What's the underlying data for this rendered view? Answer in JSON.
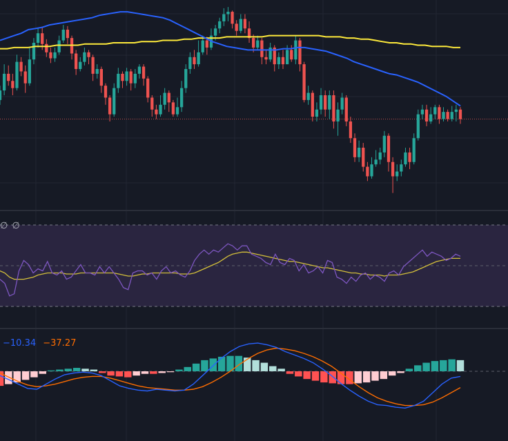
{
  "colors": {
    "background": "#161a25",
    "up_candle": "#26a69a",
    "down_candle": "#ef5350",
    "ma_fast": "#2962ff",
    "ma_slow": "#ffeb3b",
    "rsi_line": "#7e57c2",
    "rsi_ma": "#d4c03a",
    "rsi_band": "#2a2540",
    "macd_line": "#2962ff",
    "signal_line": "#ff6d00",
    "hist_up_strong": "#26a69a",
    "hist_up_weak": "#b2dfdb",
    "hist_down_strong": "#ff5252",
    "hist_down_weak": "#ffcdd2",
    "grid": "#222632",
    "price_line": "#c0504d"
  },
  "rsi_pane": {
    "label": "∅ ∅"
  },
  "macd_pane": {
    "macd_value": "−10.34",
    "signal_value": "−37.27",
    "macd_color": "#2962ff",
    "signal_color": "#ff6d00"
  },
  "chart_data": {
    "type": "candlestick",
    "panes": [
      "price",
      "rsi",
      "macd"
    ],
    "grid": true,
    "candles": [
      {
        "o": 74,
        "c": 82,
        "h": 86,
        "l": 70
      },
      {
        "o": 82,
        "c": 96,
        "h": 104,
        "l": 78
      },
      {
        "o": 96,
        "c": 90,
        "h": 103,
        "l": 86
      },
      {
        "o": 90,
        "c": 84,
        "h": 96,
        "l": 78
      },
      {
        "o": 84,
        "c": 106,
        "h": 112,
        "l": 82
      },
      {
        "o": 106,
        "c": 98,
        "h": 110,
        "l": 94
      },
      {
        "o": 98,
        "c": 88,
        "h": 103,
        "l": 80
      },
      {
        "o": 88,
        "c": 108,
        "h": 118,
        "l": 86
      },
      {
        "o": 108,
        "c": 122,
        "h": 126,
        "l": 104
      },
      {
        "o": 122,
        "c": 130,
        "h": 134,
        "l": 118
      },
      {
        "o": 130,
        "c": 121,
        "h": 135,
        "l": 116
      },
      {
        "o": 121,
        "c": 114,
        "h": 125,
        "l": 110
      },
      {
        "o": 114,
        "c": 109,
        "h": 118,
        "l": 105
      },
      {
        "o": 109,
        "c": 114,
        "h": 118,
        "l": 106
      },
      {
        "o": 114,
        "c": 124,
        "h": 128,
        "l": 112
      },
      {
        "o": 124,
        "c": 133,
        "h": 137,
        "l": 122
      },
      {
        "o": 133,
        "c": 126,
        "h": 136,
        "l": 121
      },
      {
        "o": 126,
        "c": 113,
        "h": 128,
        "l": 108
      },
      {
        "o": 113,
        "c": 100,
        "h": 116,
        "l": 95
      },
      {
        "o": 100,
        "c": 106,
        "h": 110,
        "l": 98
      },
      {
        "o": 106,
        "c": 114,
        "h": 118,
        "l": 103
      },
      {
        "o": 114,
        "c": 110,
        "h": 116,
        "l": 104
      },
      {
        "o": 110,
        "c": 96,
        "h": 112,
        "l": 90
      },
      {
        "o": 96,
        "c": 100,
        "h": 104,
        "l": 92
      },
      {
        "o": 100,
        "c": 86,
        "h": 102,
        "l": 80
      },
      {
        "o": 86,
        "c": 76,
        "h": 88,
        "l": 70
      },
      {
        "o": 76,
        "c": 62,
        "h": 78,
        "l": 56
      },
      {
        "o": 62,
        "c": 84,
        "h": 88,
        "l": 60
      },
      {
        "o": 84,
        "c": 96,
        "h": 101,
        "l": 80
      },
      {
        "o": 96,
        "c": 90,
        "h": 98,
        "l": 84
      },
      {
        "o": 90,
        "c": 98,
        "h": 101,
        "l": 86
      },
      {
        "o": 98,
        "c": 88,
        "h": 100,
        "l": 82
      },
      {
        "o": 88,
        "c": 96,
        "h": 100,
        "l": 84
      },
      {
        "o": 96,
        "c": 102,
        "h": 104,
        "l": 92
      },
      {
        "o": 102,
        "c": 92,
        "h": 104,
        "l": 86
      },
      {
        "o": 92,
        "c": 76,
        "h": 94,
        "l": 72
      },
      {
        "o": 76,
        "c": 66,
        "h": 78,
        "l": 60
      },
      {
        "o": 66,
        "c": 62,
        "h": 70,
        "l": 58
      },
      {
        "o": 62,
        "c": 70,
        "h": 78,
        "l": 60
      },
      {
        "o": 70,
        "c": 80,
        "h": 84,
        "l": 66
      },
      {
        "o": 80,
        "c": 72,
        "h": 82,
        "l": 64
      },
      {
        "o": 72,
        "c": 62,
        "h": 74,
        "l": 60
      },
      {
        "o": 62,
        "c": 68,
        "h": 76,
        "l": 60
      },
      {
        "o": 68,
        "c": 84,
        "h": 90,
        "l": 64
      },
      {
        "o": 84,
        "c": 100,
        "h": 104,
        "l": 80
      },
      {
        "o": 100,
        "c": 110,
        "h": 114,
        "l": 96
      },
      {
        "o": 110,
        "c": 104,
        "h": 116,
        "l": 100
      },
      {
        "o": 104,
        "c": 114,
        "h": 124,
        "l": 102
      },
      {
        "o": 114,
        "c": 124,
        "h": 128,
        "l": 112
      },
      {
        "o": 124,
        "c": 118,
        "h": 127,
        "l": 112
      },
      {
        "o": 118,
        "c": 128,
        "h": 134,
        "l": 116
      },
      {
        "o": 128,
        "c": 134,
        "h": 137,
        "l": 124
      },
      {
        "o": 134,
        "c": 140,
        "h": 143,
        "l": 130
      },
      {
        "o": 140,
        "c": 146,
        "h": 151,
        "l": 136
      },
      {
        "o": 146,
        "c": 148,
        "h": 152,
        "l": 140
      },
      {
        "o": 148,
        "c": 138,
        "h": 149,
        "l": 134
      },
      {
        "o": 138,
        "c": 132,
        "h": 141,
        "l": 128
      },
      {
        "o": 132,
        "c": 142,
        "h": 146,
        "l": 130
      },
      {
        "o": 142,
        "c": 134,
        "h": 146,
        "l": 130
      },
      {
        "o": 134,
        "c": 126,
        "h": 140,
        "l": 122
      },
      {
        "o": 126,
        "c": 118,
        "h": 129,
        "l": 114
      },
      {
        "o": 118,
        "c": 124,
        "h": 128,
        "l": 116
      },
      {
        "o": 124,
        "c": 110,
        "h": 126,
        "l": 104
      },
      {
        "o": 110,
        "c": 108,
        "h": 116,
        "l": 104
      },
      {
        "o": 108,
        "c": 118,
        "h": 122,
        "l": 106
      },
      {
        "o": 118,
        "c": 104,
        "h": 120,
        "l": 98
      },
      {
        "o": 104,
        "c": 110,
        "h": 114,
        "l": 100
      },
      {
        "o": 110,
        "c": 104,
        "h": 116,
        "l": 100
      },
      {
        "o": 104,
        "c": 116,
        "h": 120,
        "l": 104
      },
      {
        "o": 116,
        "c": 108,
        "h": 120,
        "l": 106
      },
      {
        "o": 108,
        "c": 124,
        "h": 128,
        "l": 104
      },
      {
        "o": 124,
        "c": 104,
        "h": 126,
        "l": 98
      },
      {
        "o": 104,
        "c": 74,
        "h": 106,
        "l": 72
      },
      {
        "o": 74,
        "c": 80,
        "h": 86,
        "l": 70
      },
      {
        "o": 80,
        "c": 60,
        "h": 82,
        "l": 56
      },
      {
        "o": 60,
        "c": 66,
        "h": 72,
        "l": 56
      },
      {
        "o": 66,
        "c": 78,
        "h": 84,
        "l": 62
      },
      {
        "o": 78,
        "c": 66,
        "h": 82,
        "l": 60
      },
      {
        "o": 66,
        "c": 78,
        "h": 82,
        "l": 58
      },
      {
        "o": 78,
        "c": 56,
        "h": 82,
        "l": 50
      },
      {
        "o": 56,
        "c": 66,
        "h": 72,
        "l": 44
      },
      {
        "o": 66,
        "c": 76,
        "h": 80,
        "l": 62
      },
      {
        "o": 76,
        "c": 56,
        "h": 78,
        "l": 52
      },
      {
        "o": 56,
        "c": 42,
        "h": 60,
        "l": 38
      },
      {
        "o": 42,
        "c": 26,
        "h": 46,
        "l": 22
      },
      {
        "o": 26,
        "c": 34,
        "h": 40,
        "l": 22
      },
      {
        "o": 34,
        "c": 18,
        "h": 38,
        "l": 14
      },
      {
        "o": 18,
        "c": 10,
        "h": 22,
        "l": 6
      },
      {
        "o": 10,
        "c": 20,
        "h": 26,
        "l": 8
      },
      {
        "o": 20,
        "c": 24,
        "h": 32,
        "l": 18
      },
      {
        "o": 24,
        "c": 30,
        "h": 34,
        "l": 20
      },
      {
        "o": 30,
        "c": 44,
        "h": 48,
        "l": 26
      },
      {
        "o": 44,
        "c": 22,
        "h": 46,
        "l": 14
      },
      {
        "o": 22,
        "c": 10,
        "h": 26,
        "l": -4
      },
      {
        "o": 10,
        "c": 14,
        "h": 20,
        "l": 6
      },
      {
        "o": 14,
        "c": 20,
        "h": 24,
        "l": 10
      },
      {
        "o": 20,
        "c": 30,
        "h": 34,
        "l": 18
      },
      {
        "o": 30,
        "c": 22,
        "h": 34,
        "l": 16
      },
      {
        "o": 22,
        "c": 42,
        "h": 46,
        "l": 20
      },
      {
        "o": 42,
        "c": 62,
        "h": 66,
        "l": 40
      },
      {
        "o": 62,
        "c": 66,
        "h": 70,
        "l": 58
      },
      {
        "o": 66,
        "c": 56,
        "h": 70,
        "l": 52
      },
      {
        "o": 56,
        "c": 62,
        "h": 68,
        "l": 54
      },
      {
        "o": 62,
        "c": 68,
        "h": 70,
        "l": 58
      },
      {
        "o": 68,
        "c": 58,
        "h": 70,
        "l": 54
      },
      {
        "o": 58,
        "c": 64,
        "h": 68,
        "l": 56
      },
      {
        "o": 64,
        "c": 58,
        "h": 66,
        "l": 56
      },
      {
        "o": 58,
        "c": 64,
        "h": 69,
        "l": 56
      },
      {
        "o": 64,
        "c": 66,
        "h": 70,
        "l": 56
      },
      {
        "o": 66,
        "c": 58,
        "h": 68,
        "l": 54
      }
    ],
    "price_line_level": 58,
    "ma_fast": [
      124,
      126,
      128,
      130,
      133,
      134,
      135,
      137,
      138,
      139,
      140,
      141,
      142,
      143,
      145,
      146,
      147,
      148,
      148,
      147,
      146,
      145,
      144,
      143,
      141,
      138,
      135,
      132,
      129,
      126,
      123,
      121,
      119,
      118,
      117,
      116,
      116,
      116,
      116,
      116,
      117,
      117,
      118,
      118,
      117,
      116,
      115,
      113,
      111,
      109,
      106,
      104,
      102,
      100,
      98,
      96,
      95,
      93,
      91,
      89,
      86,
      83,
      80,
      77,
      73,
      69
    ],
    "ma_slow": [
      117,
      117,
      118,
      118,
      118,
      119,
      119,
      119,
      120,
      120,
      120,
      120,
      121,
      121,
      121,
      121,
      122,
      122,
      122,
      122,
      123,
      123,
      123,
      124,
      124,
      124,
      125,
      125,
      126,
      126,
      126,
      126,
      127,
      127,
      127,
      127,
      127,
      127,
      128,
      128,
      128,
      128,
      128,
      128,
      128,
      128,
      127,
      127,
      127,
      126,
      126,
      125,
      125,
      124,
      123,
      122,
      122,
      121,
      121,
      120,
      120,
      119,
      119,
      119,
      118,
      118
    ],
    "rsi": [
      38,
      34,
      22,
      24,
      46,
      56,
      52,
      44,
      48,
      46,
      55,
      44,
      42,
      46,
      38,
      40,
      46,
      52,
      44,
      44,
      42,
      50,
      44,
      50,
      44,
      38,
      30,
      28,
      44,
      46,
      46,
      42,
      44,
      38,
      46,
      50,
      44,
      46,
      42,
      40,
      46,
      56,
      62,
      66,
      62,
      66,
      64,
      68,
      72,
      70,
      66,
      70,
      70,
      62,
      60,
      58,
      54,
      52,
      62,
      54,
      52,
      58,
      56,
      46,
      52,
      44,
      46,
      50,
      44,
      56,
      54,
      40,
      38,
      34,
      40,
      36,
      42,
      44,
      38,
      42,
      40,
      36,
      44,
      46,
      42,
      50,
      54,
      58,
      62,
      66,
      60,
      64,
      62,
      60,
      56,
      58,
      62,
      60
    ],
    "rsi_ma": [
      46,
      44,
      40,
      38,
      38,
      38,
      39,
      40,
      42,
      43,
      44,
      44,
      44,
      44,
      43,
      43,
      43,
      44,
      44,
      44,
      44,
      44,
      44,
      44,
      44,
      43,
      42,
      41,
      41,
      42,
      43,
      43,
      44,
      44,
      44,
      44,
      44,
      44,
      43,
      43,
      43,
      44,
      46,
      48,
      50,
      52,
      54,
      57,
      60,
      62,
      63,
      64,
      64,
      63,
      62,
      61,
      60,
      59,
      58,
      57,
      56,
      55,
      55,
      54,
      53,
      52,
      51,
      50,
      49,
      49,
      48,
      47,
      46,
      45,
      44,
      44,
      43,
      43,
      42,
      42,
      42,
      41,
      42,
      42,
      42,
      43,
      44,
      45,
      47,
      49,
      51,
      53,
      55,
      56,
      57,
      58,
      58,
      58
    ],
    "macd": [
      -10,
      -20,
      -30,
      -40,
      -42,
      -30,
      -18,
      -8,
      -4,
      -2,
      -4,
      -10,
      -22,
      -34,
      -40,
      -44,
      -46,
      -42,
      -44,
      -46,
      -44,
      -30,
      -10,
      10,
      30,
      46,
      58,
      64,
      66,
      62,
      56,
      46,
      38,
      30,
      20,
      6,
      -10,
      -28,
      -44,
      -58,
      -70,
      -78,
      -80,
      -84,
      -86,
      -80,
      -70,
      -50,
      -30,
      -16,
      -12
    ],
    "signal": [
      -4,
      -14,
      -24,
      -32,
      -36,
      -34,
      -30,
      -24,
      -18,
      -14,
      -12,
      -12,
      -16,
      -22,
      -28,
      -34,
      -38,
      -40,
      -42,
      -44,
      -44,
      -42,
      -36,
      -26,
      -14,
      0,
      16,
      30,
      42,
      50,
      54,
      52,
      48,
      42,
      34,
      24,
      12,
      -4,
      -20,
      -36,
      -50,
      -62,
      -70,
      -76,
      -80,
      -80,
      -78,
      -72,
      -62,
      -50,
      -38
    ],
    "histogram": [
      -34,
      -30,
      -26,
      -20,
      -14,
      -6,
      2,
      4,
      6,
      8,
      6,
      4,
      -4,
      -10,
      -12,
      -14,
      -10,
      -6,
      -6,
      -4,
      -2,
      4,
      10,
      18,
      26,
      30,
      34,
      36,
      36,
      32,
      26,
      20,
      12,
      6,
      -6,
      -12,
      -18,
      -22,
      -26,
      -28,
      -30,
      -30,
      -28,
      -26,
      -22,
      -18,
      -10,
      -4,
      6,
      14,
      20,
      24,
      26,
      28,
      26
    ]
  }
}
